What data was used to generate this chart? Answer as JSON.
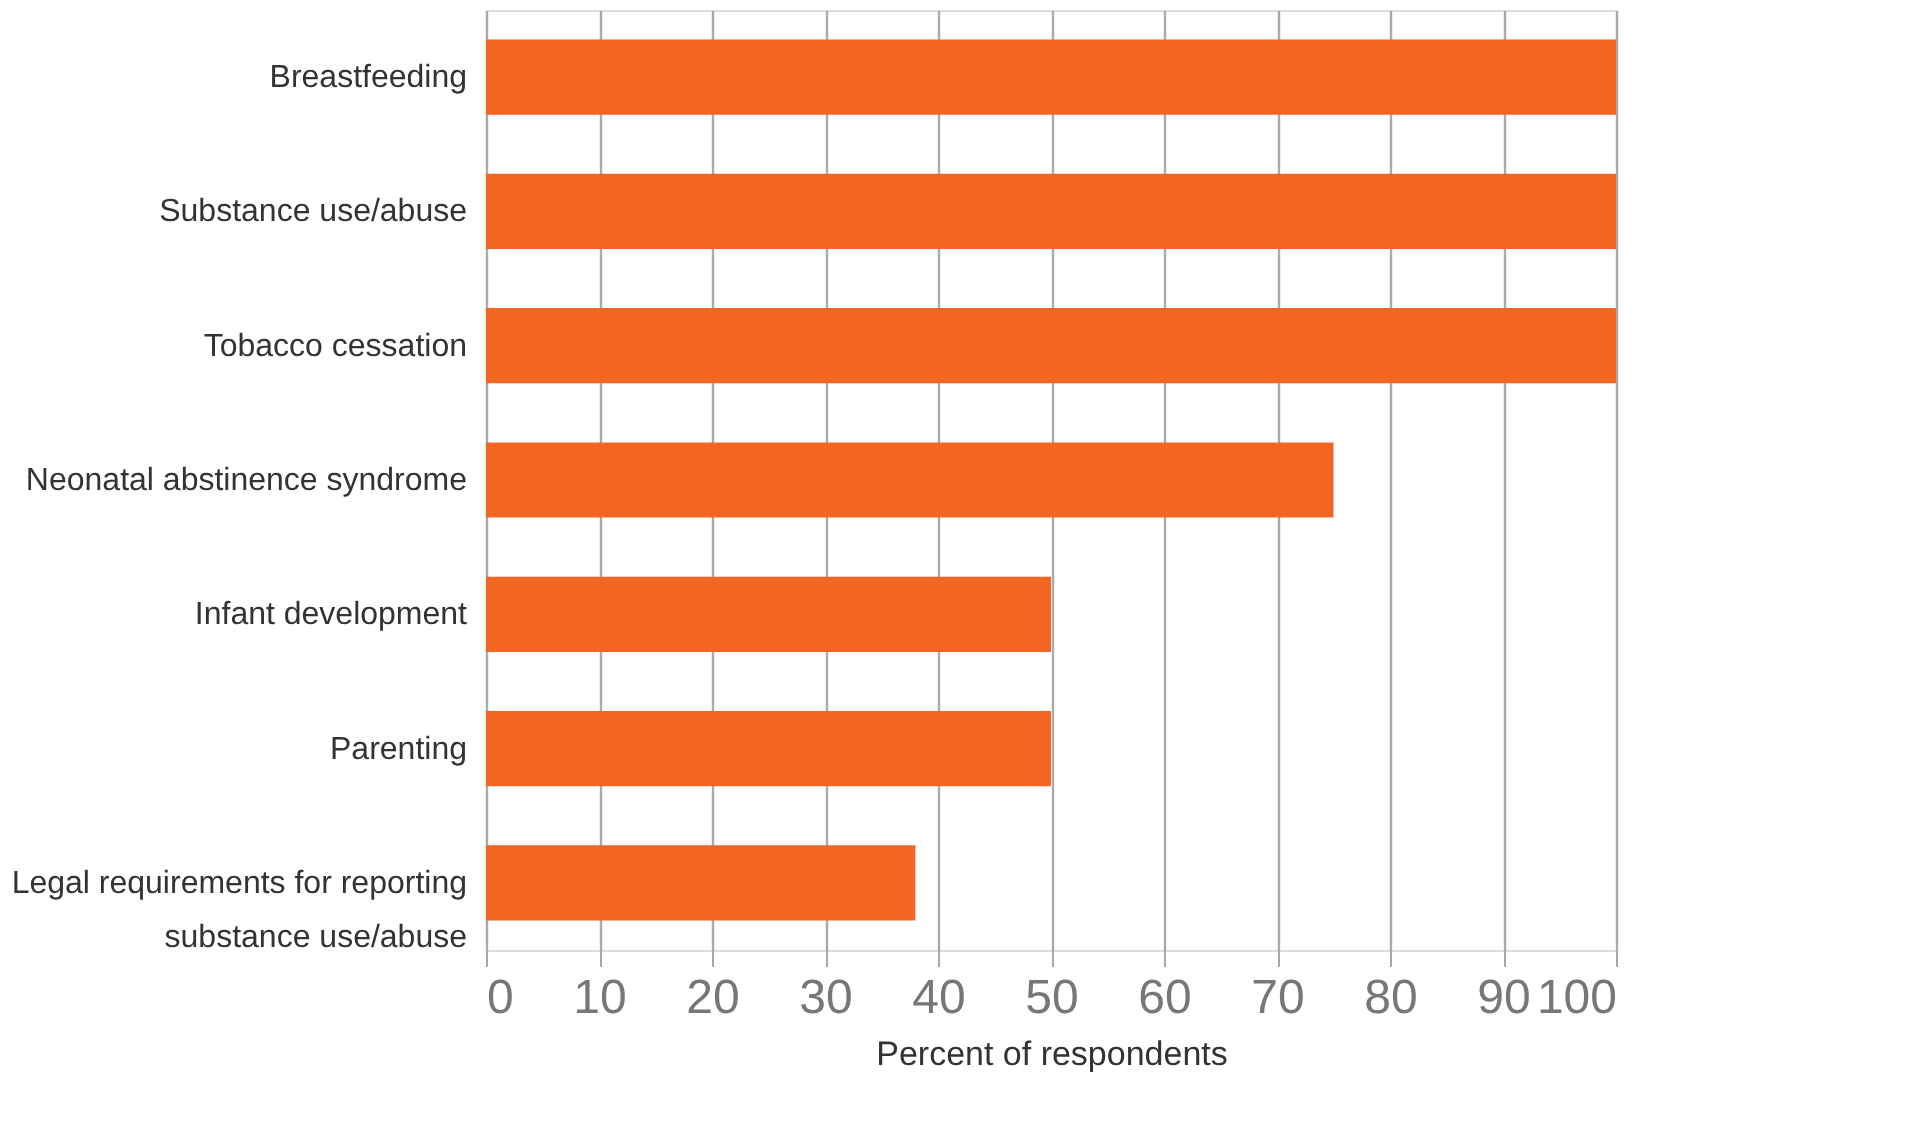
{
  "chart_data": {
    "type": "bar",
    "orientation": "horizontal",
    "xlabel": "Percent of respondents",
    "categories": [
      "Breastfeeding",
      "Substance use/abuse",
      "Tobacco cessation",
      "Neonatal abstinence syndrome",
      "Infant development",
      "Parenting",
      "Legal requirements for reporting substance use/abuse"
    ],
    "values": [
      100,
      100,
      100,
      75,
      50,
      50,
      38
    ],
    "color": "#f26522",
    "xlim": [
      0,
      100
    ],
    "xticks": [
      0,
      10,
      20,
      30,
      40,
      50,
      60,
      70,
      80,
      90,
      100
    ],
    "grid": "x"
  }
}
